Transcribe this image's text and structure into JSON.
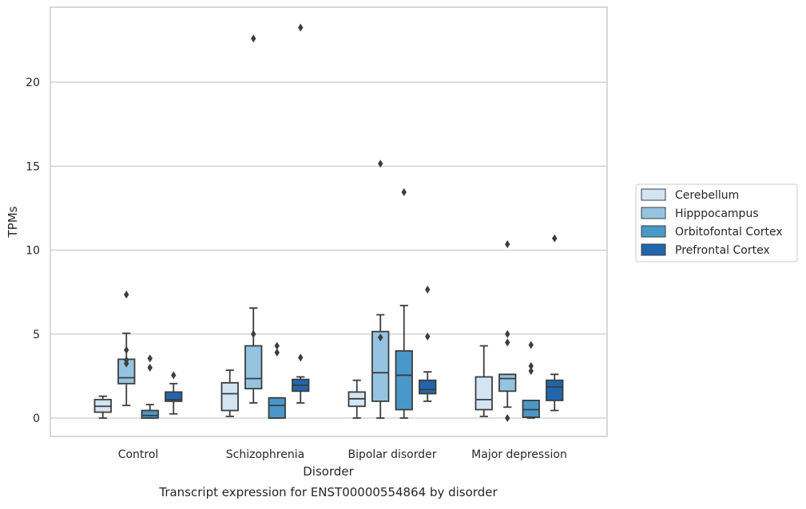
{
  "chart_data": {
    "type": "box",
    "title": "",
    "caption": "Transcript expression for ENST00000554864 by disorder",
    "xlabel": "Disorder",
    "ylabel": "TPMs",
    "ylim": [
      -1.1,
      24.3
    ],
    "yticks": [
      0,
      5,
      10,
      15,
      20
    ],
    "grid": "horizontal",
    "legend_position": "right",
    "categories": [
      "Control",
      "Schizophrenia",
      "Bipolar disorder",
      "Major depression"
    ],
    "series": [
      {
        "name": "Cerebellum",
        "color": "#d3e4f3",
        "boxes": [
          {
            "whisker_low": 0.0,
            "q1": 0.35,
            "median": 0.7,
            "q3": 1.1,
            "whisker_high": 1.3,
            "outliers": []
          },
          {
            "whisker_low": 0.1,
            "q1": 0.45,
            "median": 1.45,
            "q3": 2.1,
            "whisker_high": 2.85,
            "outliers": []
          },
          {
            "whisker_low": 0.0,
            "q1": 0.7,
            "median": 1.15,
            "q3": 1.55,
            "whisker_high": 2.25,
            "outliers": []
          },
          {
            "whisker_low": 0.1,
            "q1": 0.5,
            "median": 1.1,
            "q3": 2.45,
            "whisker_high": 4.3,
            "outliers": []
          }
        ]
      },
      {
        "name": "Hipppocampus",
        "color": "#94c4df",
        "boxes": [
          {
            "whisker_low": 0.75,
            "q1": 2.05,
            "median": 2.4,
            "q3": 3.5,
            "whisker_high": 5.05,
            "outliers": [
              4.05,
              3.45,
              3.25,
              7.35
            ]
          },
          {
            "whisker_low": 0.9,
            "q1": 1.75,
            "median": 2.35,
            "q3": 4.3,
            "whisker_high": 6.55,
            "outliers": [
              5.0,
              22.6
            ]
          },
          {
            "whisker_low": 0.0,
            "q1": 1.0,
            "median": 2.7,
            "q3": 5.15,
            "whisker_high": 6.15,
            "outliers": [
              4.8,
              15.15
            ]
          },
          {
            "whisker_low": 0.65,
            "q1": 1.6,
            "median": 2.35,
            "q3": 2.6,
            "whisker_high": 2.6,
            "outliers": [
              0.0,
              4.5,
              5.0,
              10.35
            ]
          }
        ]
      },
      {
        "name": "Orbitofontal Cortex",
        "color": "#4a98c9",
        "boxes": [
          {
            "whisker_low": 0.0,
            "q1": 0.0,
            "median": 0.15,
            "q3": 0.45,
            "whisker_high": 0.8,
            "outliers": [
              3.0,
              3.55
            ]
          },
          {
            "whisker_low": 0.0,
            "q1": 0.0,
            "median": 0.75,
            "q3": 1.2,
            "whisker_high": 1.2,
            "outliers": [
              3.9,
              4.3
            ]
          },
          {
            "whisker_low": 0.0,
            "q1": 0.5,
            "median": 2.55,
            "q3": 4.0,
            "whisker_high": 6.7,
            "outliers": [
              13.45
            ]
          },
          {
            "whisker_low": 0.0,
            "q1": 0.05,
            "median": 0.5,
            "q3": 1.05,
            "whisker_high": 1.05,
            "outliers": [
              2.8,
              3.1,
              4.35
            ]
          }
        ]
      },
      {
        "name": "Prefrontal Cortex",
        "color": "#2166ac",
        "boxes": [
          {
            "whisker_low": 0.25,
            "q1": 1.0,
            "median": 1.1,
            "q3": 1.55,
            "whisker_high": 2.05,
            "outliers": [
              2.55
            ]
          },
          {
            "whisker_low": 0.9,
            "q1": 1.6,
            "median": 1.95,
            "q3": 2.3,
            "whisker_high": 2.45,
            "outliers": [
              3.6,
              23.25
            ]
          },
          {
            "whisker_low": 1.0,
            "q1": 1.45,
            "median": 1.7,
            "q3": 2.25,
            "whisker_high": 2.75,
            "outliers": [
              4.85,
              7.65
            ]
          },
          {
            "whisker_low": 0.45,
            "q1": 1.05,
            "median": 1.85,
            "q3": 2.25,
            "whisker_high": 2.6,
            "outliers": [
              10.7
            ]
          }
        ]
      }
    ]
  }
}
